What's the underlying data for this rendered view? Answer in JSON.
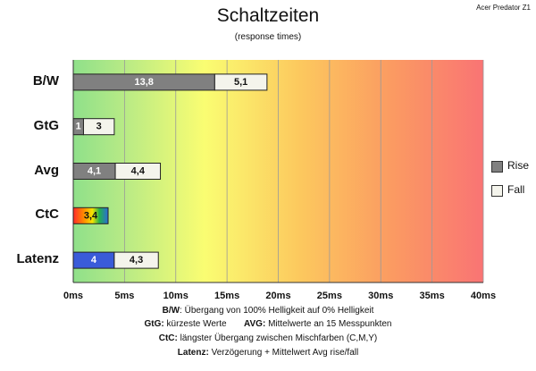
{
  "corner_label": "Acer Predator Z1",
  "colors": {
    "rise": "#808080",
    "fall": "#f4f4ec",
    "latenz_rise": "#3a5bd9"
  },
  "chart_data": {
    "type": "bar",
    "orientation": "horizontal",
    "stacked": true,
    "title": "Schaltzeiten",
    "subtitle": "(response times)",
    "categories": [
      "B/W",
      "GtG",
      "Avg",
      "CtC",
      "Latenz"
    ],
    "series": [
      {
        "name": "Rise",
        "values": [
          13.8,
          1,
          4.1,
          3.4,
          4
        ],
        "labels": [
          "13,8",
          "1",
          "4,1",
          "3,4",
          "4"
        ]
      },
      {
        "name": "Fall",
        "values": [
          5.1,
          3,
          4.4,
          null,
          4.3
        ],
        "labels": [
          "5,1",
          "3",
          "4,4",
          "",
          "4,3"
        ]
      }
    ],
    "xlim": [
      0,
      40
    ],
    "xticks": [
      "0ms",
      "5ms",
      "10ms",
      "15ms",
      "20ms",
      "25ms",
      "30ms",
      "35ms",
      "40ms"
    ],
    "grid": true,
    "legend": "right"
  },
  "footer": {
    "line1_key": "B/W",
    "line1_text": ":  Übergang von 100% Helligkeit auf 0% Helligkeit",
    "line2_key_a": "GtG:",
    "line2_text_a": " kürzeste  Werte",
    "line2_key_b": "AVG:",
    "line2_text_b": "  Mittelwerte  an 15 Messpunkten",
    "line3_key": "CtC:",
    "line3_text": "  längster Übergang  zwischen Mischfarben  (C,M,Y)",
    "line4_key": "Latenz:",
    "line4_text": "  Verzögerung  + Mittelwert  Avg rise/fall"
  }
}
